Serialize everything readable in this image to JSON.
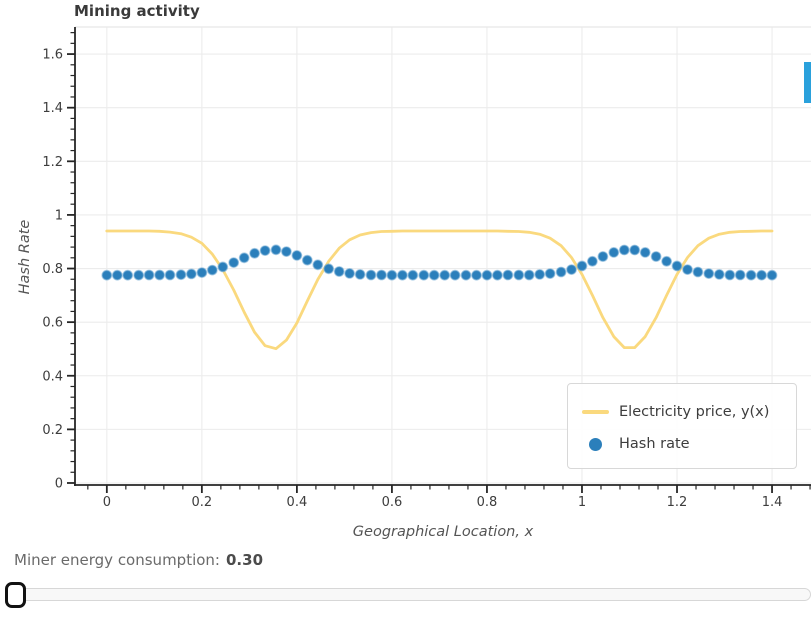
{
  "title": "Mining activity",
  "colors": {
    "electricity_line": "#fad97e",
    "hash_dot": "#2b7fbb",
    "edge_indicator": "#2aa1dc",
    "grid": "#ececec",
    "axis": "#262626"
  },
  "chart_data": {
    "type": "line+scatter",
    "title": "Mining activity",
    "xlabel": "Geographical Location, x",
    "ylabel": "Hash Rate",
    "xlim": [
      -0.067,
      1.482
    ],
    "ylim": [
      -0.0075,
      1.701
    ],
    "grid": true,
    "xticks": {
      "values": [
        0,
        0.2,
        0.4,
        0.6,
        0.8,
        1,
        1.2,
        1.4
      ],
      "labels": [
        "0",
        "0.2",
        "0.4",
        "0.6",
        "0.8",
        "1",
        "1.2",
        "1.4"
      ]
    },
    "yticks": {
      "values": [
        0,
        0.2,
        0.4,
        0.6,
        0.8,
        1,
        1.2,
        1.4,
        1.6
      ],
      "labels": [
        "0",
        "0.2",
        "0.4",
        "0.6",
        "0.8",
        "1",
        "1.2",
        "1.4",
        "1.6"
      ]
    },
    "minor_tick_step": 0.04,
    "legend": {
      "position": "lower right",
      "items": [
        {
          "label": "Electricity price, y(x)",
          "marker": "line"
        },
        {
          "label": "Hash rate",
          "marker": "circle"
        }
      ]
    },
    "series": [
      {
        "name": "Electricity price, y(x)",
        "type": "line",
        "color": "#fad97e",
        "x": [
          0.0,
          0.022,
          0.044,
          0.067,
          0.089,
          0.111,
          0.133,
          0.156,
          0.178,
          0.2,
          0.222,
          0.244,
          0.267,
          0.289,
          0.311,
          0.333,
          0.356,
          0.378,
          0.4,
          0.422,
          0.444,
          0.467,
          0.489,
          0.511,
          0.533,
          0.556,
          0.578,
          0.6,
          0.622,
          0.644,
          0.667,
          0.689,
          0.711,
          0.733,
          0.756,
          0.778,
          0.8,
          0.822,
          0.844,
          0.867,
          0.889,
          0.911,
          0.933,
          0.956,
          0.978,
          1.0,
          1.022,
          1.044,
          1.067,
          1.089,
          1.111,
          1.133,
          1.156,
          1.178,
          1.2,
          1.222,
          1.244,
          1.267,
          1.289,
          1.311,
          1.333,
          1.356,
          1.378,
          1.4
        ],
        "y": [
          0.94,
          0.94,
          0.94,
          0.94,
          0.94,
          0.939,
          0.936,
          0.93,
          0.917,
          0.894,
          0.854,
          0.796,
          0.72,
          0.637,
          0.562,
          0.512,
          0.501,
          0.533,
          0.597,
          0.679,
          0.759,
          0.827,
          0.876,
          0.907,
          0.925,
          0.934,
          0.938,
          0.939,
          0.94,
          0.94,
          0.94,
          0.94,
          0.94,
          0.94,
          0.94,
          0.94,
          0.94,
          0.94,
          0.939,
          0.938,
          0.935,
          0.928,
          0.913,
          0.885,
          0.841,
          0.778,
          0.7,
          0.617,
          0.546,
          0.505,
          0.505,
          0.546,
          0.617,
          0.7,
          0.778,
          0.841,
          0.885,
          0.913,
          0.928,
          0.935,
          0.938,
          0.939,
          0.94,
          0.94
        ]
      },
      {
        "name": "Hash rate",
        "type": "scatter",
        "color": "#2b7fbb",
        "x": [
          0.0,
          0.022,
          0.044,
          0.067,
          0.089,
          0.111,
          0.133,
          0.156,
          0.178,
          0.2,
          0.222,
          0.244,
          0.267,
          0.289,
          0.311,
          0.333,
          0.356,
          0.378,
          0.4,
          0.422,
          0.444,
          0.467,
          0.489,
          0.511,
          0.533,
          0.556,
          0.578,
          0.6,
          0.622,
          0.644,
          0.667,
          0.689,
          0.711,
          0.733,
          0.756,
          0.778,
          0.8,
          0.822,
          0.844,
          0.867,
          0.889,
          0.911,
          0.933,
          0.956,
          0.978,
          1.0,
          1.022,
          1.044,
          1.067,
          1.089,
          1.111,
          1.133,
          1.156,
          1.178,
          1.2,
          1.222,
          1.244,
          1.267,
          1.289,
          1.311,
          1.333,
          1.356,
          1.378,
          1.4
        ],
        "y": [
          0.775,
          0.775,
          0.775,
          0.775,
          0.776,
          0.776,
          0.776,
          0.777,
          0.78,
          0.785,
          0.794,
          0.806,
          0.822,
          0.84,
          0.857,
          0.867,
          0.87,
          0.863,
          0.849,
          0.831,
          0.814,
          0.799,
          0.789,
          0.782,
          0.778,
          0.776,
          0.776,
          0.775,
          0.775,
          0.775,
          0.775,
          0.775,
          0.775,
          0.775,
          0.775,
          0.775,
          0.775,
          0.775,
          0.776,
          0.776,
          0.776,
          0.778,
          0.781,
          0.787,
          0.796,
          0.81,
          0.827,
          0.845,
          0.86,
          0.869,
          0.869,
          0.86,
          0.845,
          0.827,
          0.81,
          0.796,
          0.787,
          0.781,
          0.778,
          0.776,
          0.776,
          0.775,
          0.775,
          0.775
        ]
      }
    ]
  },
  "controls": {
    "label": "Miner energy consumption:",
    "value": "0.30"
  }
}
